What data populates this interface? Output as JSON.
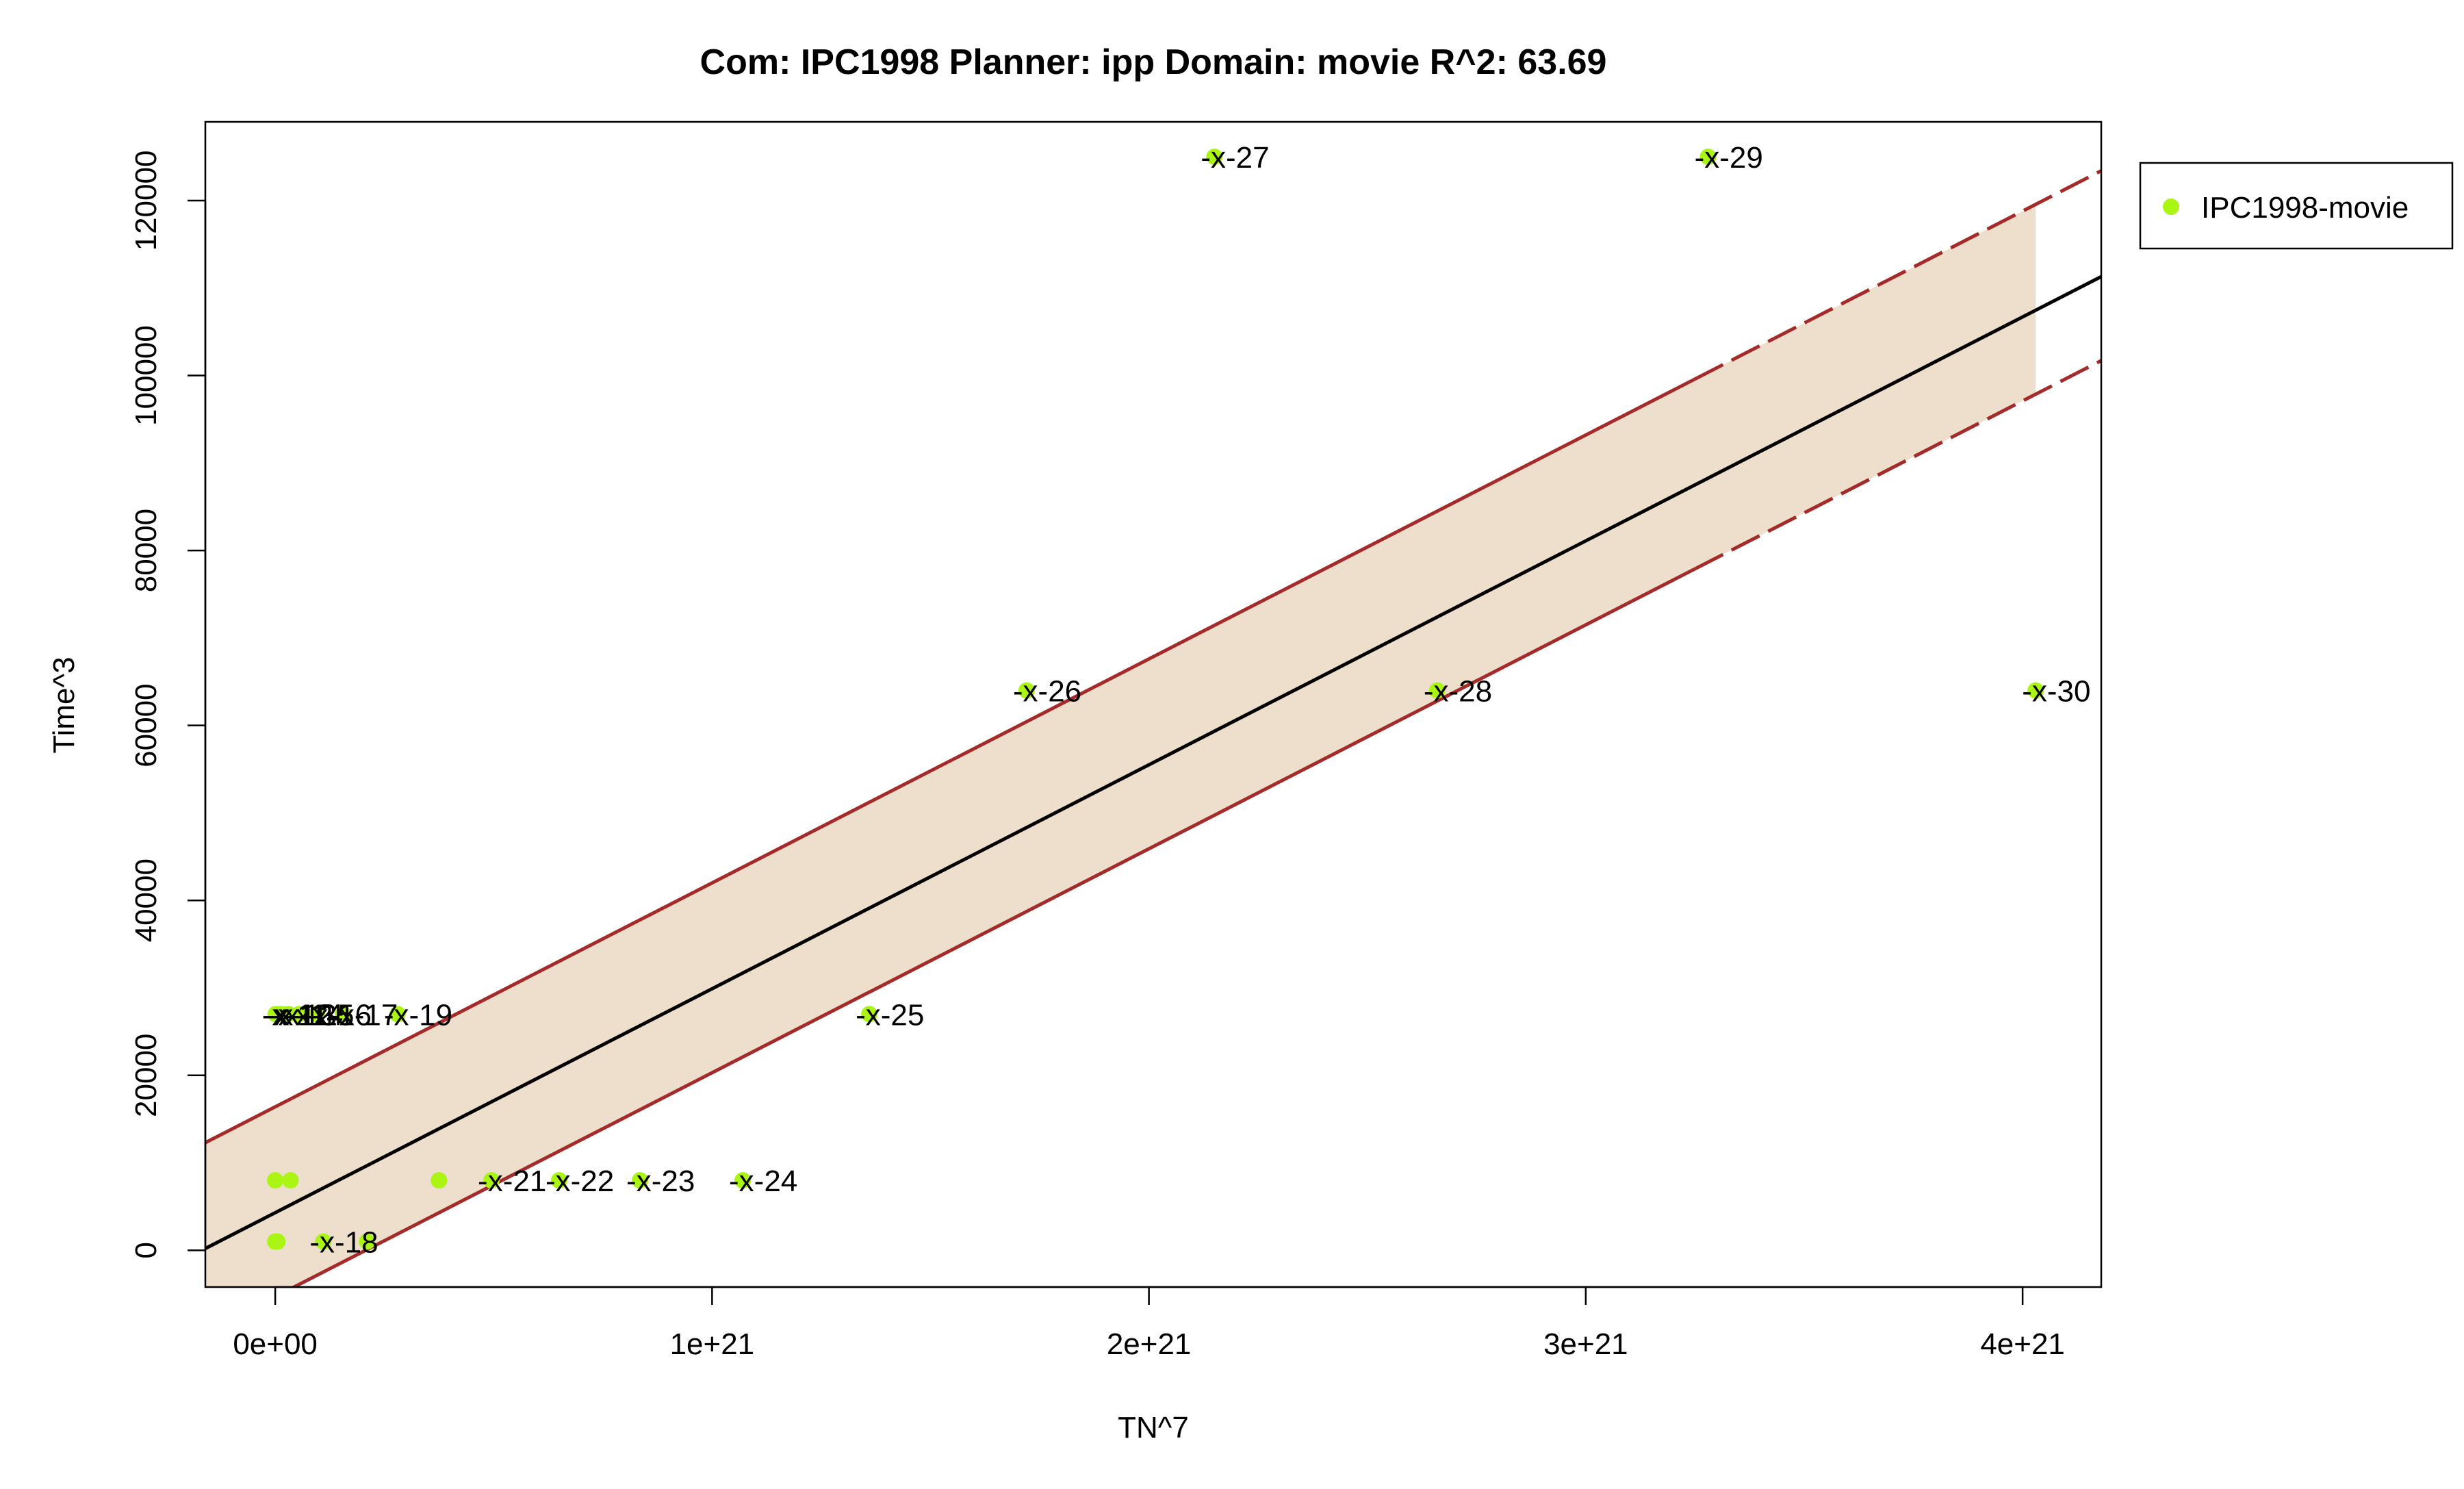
{
  "chart_data": {
    "type": "scatter",
    "title": "Com: IPC1998 Planner: ipp Domain: movie R^2: 63.69",
    "xlabel": "TN^7",
    "ylabel": "Time^3",
    "xlim": [
      -1.6e+20,
      4.18e+21
    ],
    "ylim": [
      -4200,
      129000
    ],
    "x_ticks": [
      {
        "value": 0,
        "label": "0e+00"
      },
      {
        "value": 1e+21,
        "label": "1e+21"
      },
      {
        "value": 2e+21,
        "label": "2e+21"
      },
      {
        "value": 3e+21,
        "label": "3e+21"
      },
      {
        "value": 4e+21,
        "label": "4e+21"
      }
    ],
    "y_ticks": [
      {
        "value": 0,
        "label": "0"
      },
      {
        "value": 20000,
        "label": "20000"
      },
      {
        "value": 40000,
        "label": "40000"
      },
      {
        "value": 60000,
        "label": "60000"
      },
      {
        "value": 80000,
        "label": "80000"
      },
      {
        "value": 100000,
        "label": "100000"
      },
      {
        "value": 120000,
        "label": "120000"
      }
    ],
    "legend": {
      "position": "top-right",
      "entries": [
        {
          "name": "IPC1998-movie",
          "color": "#aaf513"
        }
      ]
    },
    "grid": false,
    "colors": {
      "points": "#aaf513",
      "fit": "#000000",
      "band_fill": "#eedfcc",
      "band_line": "#a52a2a"
    },
    "series": [
      {
        "name": "IPC1998-movie",
        "points": [
          {
            "x": 0.0,
            "y": 1000,
            "label": ""
          },
          {
            "x": 5e+18,
            "y": 1000,
            "label": ""
          },
          {
            "x": 1.1e+20,
            "y": 1000,
            "label": "-x-18"
          },
          {
            "x": 2.1e+20,
            "y": 1000,
            "label": ""
          },
          {
            "x": 0.0,
            "y": 8000,
            "label": ""
          },
          {
            "x": 3.5e+19,
            "y": 8000,
            "label": ""
          },
          {
            "x": 3.75e+20,
            "y": 8000,
            "label": ""
          },
          {
            "x": 4.95e+20,
            "y": 8000,
            "label": "-x-21"
          },
          {
            "x": 6.5e+20,
            "y": 8000,
            "label": "-x-22"
          },
          {
            "x": 8.35e+20,
            "y": 8000,
            "label": "-x-23"
          },
          {
            "x": 1.07e+21,
            "y": 8000,
            "label": "-x-24"
          },
          {
            "x": 1e+18,
            "y": 27000,
            "label": "-x-11"
          },
          {
            "x": 6e+18,
            "y": 27000,
            "label": "-x-12"
          },
          {
            "x": 1.5e+19,
            "y": 27000,
            "label": "-x-13"
          },
          {
            "x": 3e+19,
            "y": 27000,
            "label": "-x-14"
          },
          {
            "x": 5.5e+19,
            "y": 27000,
            "label": "-x-15"
          },
          {
            "x": 9.5e+19,
            "y": 27000,
            "label": "-x-16"
          },
          {
            "x": 1.55e+20,
            "y": 27000,
            "label": "-x-17"
          },
          {
            "x": 2.8e+20,
            "y": 27000,
            "label": "-x-19"
          },
          {
            "x": 1.36e+21,
            "y": 27000,
            "label": "-x-25"
          },
          {
            "x": 1.72e+21,
            "y": 64000,
            "label": "-x-26"
          },
          {
            "x": 2.15e+21,
            "y": 125000,
            "label": "-x-27"
          },
          {
            "x": 2.66e+21,
            "y": 64000,
            "label": "-x-28"
          },
          {
            "x": 3.28e+21,
            "y": 125000,
            "label": "-x-29"
          },
          {
            "x": 4.03e+21,
            "y": 64000,
            "label": "-x-30"
          }
        ]
      }
    ],
    "fit_line": {
      "intercept": 4300,
      "slope_per_1e21": 25600
    },
    "band": {
      "upper_offset": 12100,
      "lower_offset": -9600,
      "fill_x_max": 4.03e+21
    }
  }
}
